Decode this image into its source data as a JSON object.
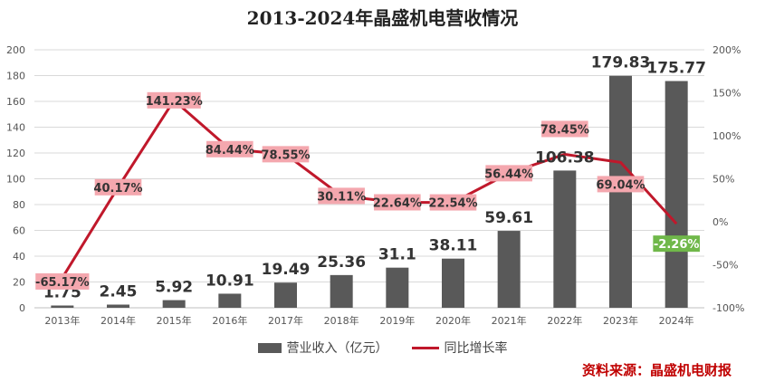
{
  "chart_data": {
    "type": "bar",
    "title": "2013-2024年晶盛机电营收情况",
    "categories": [
      "2013年",
      "2014年",
      "2015年",
      "2016年",
      "2017年",
      "2018年",
      "2019年",
      "2020年",
      "2021年",
      "2022年",
      "2023年",
      "2024年"
    ],
    "series": [
      {
        "name": "营业收入（亿元）",
        "type": "bar",
        "axis": "left",
        "color": "#595959",
        "values": [
          1.75,
          2.45,
          5.92,
          10.91,
          19.49,
          25.36,
          31.1,
          38.11,
          59.61,
          106.38,
          179.83,
          175.77
        ],
        "labels": [
          "1.75",
          "2.45",
          "5.92",
          "10.91",
          "19.49",
          "25.36",
          "31.1",
          "38.11",
          "59.61",
          "106.38",
          "179.83",
          "175.77"
        ]
      },
      {
        "name": "同比增长率",
        "type": "line",
        "axis": "right",
        "color": "#c0182b",
        "values": [
          -65.17,
          40.17,
          141.23,
          84.44,
          78.55,
          30.11,
          22.64,
          22.54,
          56.44,
          78.45,
          69.04,
          -2.26
        ],
        "labels": [
          "-65.17%",
          "40.17%",
          "141.23%",
          "84.44%",
          "78.55%",
          "30.11%",
          "22.64%",
          "22.54%",
          "56.44%",
          "78.45%",
          "69.04%",
          "-2.26%"
        ]
      }
    ],
    "ylim_left": [
      0,
      200
    ],
    "yticks_left": [
      "0",
      "20",
      "40",
      "60",
      "80",
      "100",
      "120",
      "140",
      "160",
      "180",
      "200"
    ],
    "ylim_right": [
      -100,
      200
    ],
    "yticks_right": [
      "-100%",
      "-50%",
      "0%",
      "50%",
      "100%",
      "150%",
      "200%"
    ],
    "grid": true,
    "legend": "bottom",
    "colors": {
      "bar": "#595959",
      "line": "#c0182b",
      "label_bg": "#f4a7ae",
      "label_bg_negative": "#70b84a"
    }
  },
  "source": "资料来源：晶盛机电财报"
}
